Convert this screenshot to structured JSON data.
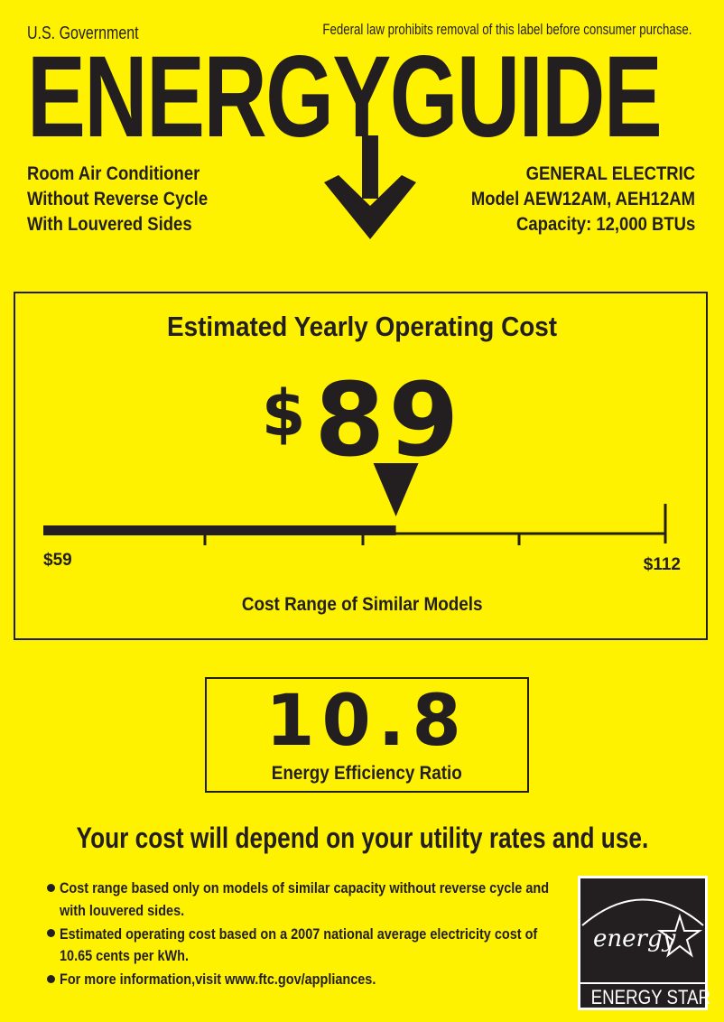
{
  "header": {
    "government": "U.S. Government",
    "law_notice": "Federal law prohibits removal of this label before consumer purchase.",
    "title": "ENERGYGUIDE"
  },
  "product": {
    "lines": [
      "Room Air Conditioner",
      "Without Reverse Cycle",
      "With Louvered Sides"
    ]
  },
  "manufacturer": {
    "brand": "GENERAL ELECTRIC",
    "model": "Model AEW12AM, AEH12AM",
    "capacity": "Capacity: 12,000 BTUs"
  },
  "operating_cost": {
    "title": "Estimated Yearly Operating Cost",
    "currency": "$",
    "value": "89",
    "range_min_label": "$59",
    "range_max_label": "$112",
    "range_min": 59,
    "range_max": 112,
    "estimate": 89,
    "range_caption": "Cost Range of Similar Models"
  },
  "efficiency": {
    "value": "10.8",
    "label": "Energy Efficiency Ratio"
  },
  "notice": "Your cost will depend on your utility rates and use.",
  "bullets": [
    [
      "Cost range based only on models of similar capacity without reverse cycle and",
      "with louvered sides."
    ],
    [
      "Estimated operating cost based on a 2007 national average electricity cost of",
      "10.65 cents per kWh."
    ],
    [
      "For more information,visit www.ftc.gov/appliances."
    ]
  ],
  "logo": {
    "script": "energy",
    "name": "ENERGY STAR"
  },
  "colors": {
    "background": "#fff200",
    "ink": "#231f20"
  }
}
